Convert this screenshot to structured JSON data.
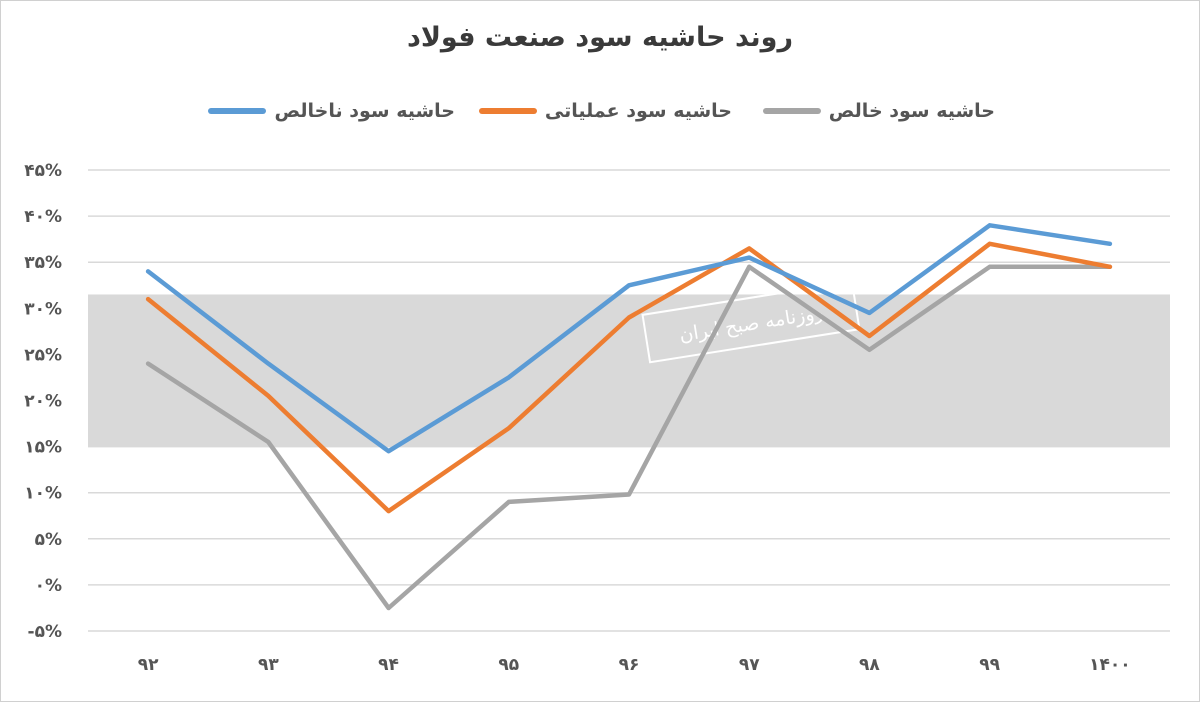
{
  "chart_data": {
    "type": "line",
    "title": "روند حاشیه سود صنعت فولاد",
    "xlabel": "",
    "ylabel": "",
    "categories": [
      "۹۲",
      "۹۳",
      "۹۴",
      "۹۵",
      "۹۶",
      "۹۷",
      "۹۸",
      "۹۹",
      "۱۴۰۰"
    ],
    "y_ticks": [
      "-۵%",
      "۰%",
      "۵%",
      "۱۰%",
      "۱۵%",
      "۲۰%",
      "۲۵%",
      "۳۰%",
      "۳۵%",
      "۴۰%",
      "۴۵%"
    ],
    "ylim": [
      -5,
      45
    ],
    "grid": true,
    "legend_position": "top",
    "series": [
      {
        "name": "حاشیه سود ناخالص",
        "color": "#5b9bd5",
        "values": [
          34,
          24,
          14.5,
          22.5,
          32.5,
          35.5,
          29.5,
          39,
          37
        ]
      },
      {
        "name": "حاشیه سود عملیاتی",
        "color": "#ed7d31",
        "values": [
          31,
          20.5,
          8,
          17,
          29,
          36.5,
          27,
          37,
          34.5
        ]
      },
      {
        "name": "حاشیه سود خالص",
        "color": "#a5a5a5",
        "values": [
          24,
          15.5,
          -2.5,
          9,
          9.8,
          34.5,
          25.5,
          34.5,
          34.5
        ]
      }
    ]
  },
  "watermark": {
    "text": "روزنامه صبح ایران",
    "band_color": "#d9d9d9"
  }
}
